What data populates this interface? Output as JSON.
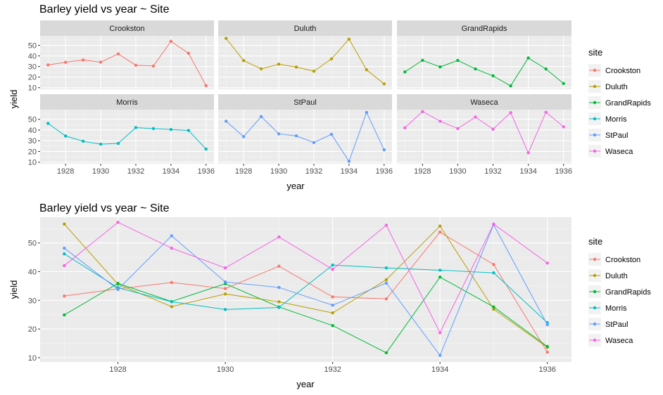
{
  "chart_data": [
    {
      "type": "line",
      "layout": "facet",
      "title": "Barley yield vs year ~ Site",
      "xlabel": "year",
      "ylabel": "yield",
      "xlim": [
        1926.55,
        1936.45
      ],
      "ylim": [
        8.5,
        59
      ],
      "x_ticks": [
        1928,
        1930,
        1932,
        1934,
        1936
      ],
      "y_ticks": [
        10,
        20,
        30,
        40,
        50
      ],
      "facet_rows": 2,
      "facet_cols": 3,
      "grid": true,
      "legend_title": "site",
      "legend_position": "right",
      "x": [
        1927,
        1928,
        1929,
        1930,
        1931,
        1932,
        1933,
        1934,
        1935,
        1936
      ],
      "series": [
        {
          "name": "Crookston",
          "color": "#F8766D",
          "values": [
            31.5,
            34,
            36.2,
            34.1,
            41.9,
            31.2,
            30.5,
            53.8,
            42.5,
            11.9
          ]
        },
        {
          "name": "Duluth",
          "color": "#B79F00",
          "values": [
            56.6,
            35.6,
            27.8,
            32.2,
            29.5,
            25.6,
            37.2,
            55.9,
            26.9,
            13.6
          ]
        },
        {
          "name": "GrandRapids",
          "color": "#00BA38",
          "values": [
            24.9,
            35.9,
            29.6,
            35.8,
            27.7,
            21.2,
            11.7,
            38.1,
            27.7,
            13.9
          ]
        },
        {
          "name": "Morris",
          "color": "#00BFC4",
          "values": [
            46.2,
            34.4,
            29.5,
            26.8,
            27.5,
            42.3,
            41.3,
            40.5,
            39.6,
            22.2
          ]
        },
        {
          "name": "StPaul",
          "color": "#619CFF",
          "values": [
            48.2,
            33.8,
            52.5,
            36.4,
            34.5,
            28.3,
            36,
            10.8,
            56.4,
            21.5
          ]
        },
        {
          "name": "Waseca",
          "color": "#F564E3",
          "values": [
            42.1,
            57.2,
            48.2,
            41.3,
            52.1,
            40.8,
            56.2,
            18.7,
            56.6,
            43
          ]
        }
      ]
    },
    {
      "type": "line",
      "layout": "single",
      "title": "Barley yield vs year ~ Site",
      "xlabel": "year",
      "ylabel": "yield",
      "xlim": [
        1926.55,
        1936.45
      ],
      "ylim": [
        8.5,
        59
      ],
      "x_ticks": [
        1928,
        1930,
        1932,
        1934,
        1936
      ],
      "y_ticks": [
        10,
        20,
        30,
        40,
        50
      ],
      "grid": true,
      "legend_title": "site",
      "legend_position": "right",
      "x": [
        1927,
        1928,
        1929,
        1930,
        1931,
        1932,
        1933,
        1934,
        1935,
        1936
      ],
      "series": [
        {
          "name": "Crookston",
          "color": "#F8766D",
          "values": [
            31.5,
            34,
            36.2,
            34.1,
            41.9,
            31.2,
            30.5,
            53.8,
            42.5,
            11.9
          ]
        },
        {
          "name": "Duluth",
          "color": "#B79F00",
          "values": [
            56.6,
            35.6,
            27.8,
            32.2,
            29.5,
            25.6,
            37.2,
            55.9,
            26.9,
            13.6
          ]
        },
        {
          "name": "GrandRapids",
          "color": "#00BA38",
          "values": [
            24.9,
            35.9,
            29.6,
            35.8,
            27.7,
            21.2,
            11.7,
            38.1,
            27.7,
            13.9
          ]
        },
        {
          "name": "Morris",
          "color": "#00BFC4",
          "values": [
            46.2,
            34.4,
            29.5,
            26.8,
            27.5,
            42.3,
            41.3,
            40.5,
            39.6,
            22.2
          ]
        },
        {
          "name": "StPaul",
          "color": "#619CFF",
          "values": [
            48.2,
            33.8,
            52.5,
            36.4,
            34.5,
            28.3,
            36,
            10.8,
            56.4,
            21.5
          ]
        },
        {
          "name": "Waseca",
          "color": "#F564E3",
          "values": [
            42.1,
            57.2,
            48.2,
            41.3,
            52.1,
            40.8,
            56.2,
            18.7,
            56.6,
            43
          ]
        }
      ]
    }
  ]
}
